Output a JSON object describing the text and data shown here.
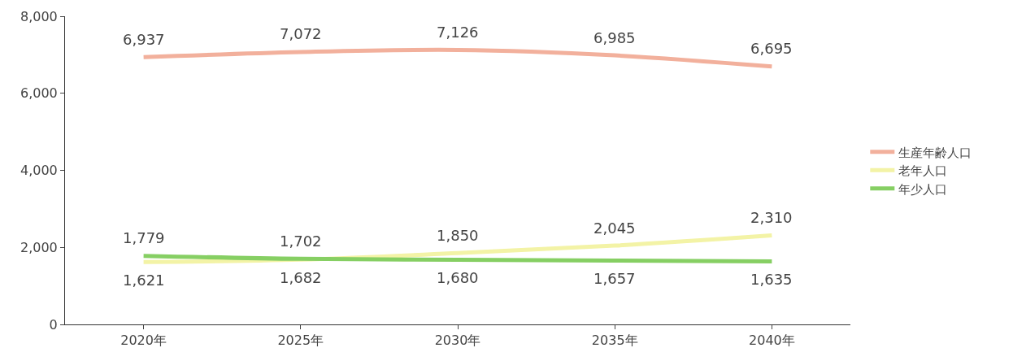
{
  "chart_data": {
    "type": "line",
    "categories": [
      "2020年",
      "2025年",
      "2030年",
      "2035年",
      "2040年"
    ],
    "series": [
      {
        "name": "生産年齢人口",
        "color": "#f2b09c",
        "values": [
          6937,
          7072,
          7126,
          6985,
          6695
        ],
        "value_labels": [
          "6,937",
          "7,072",
          "7,126",
          "6,985",
          "6,695"
        ]
      },
      {
        "name": "老年人口",
        "color": "#f3f3a6",
        "values": [
          1621,
          1682,
          1850,
          2045,
          2310
        ],
        "value_labels": [
          "1,621",
          "1,682",
          "1,850",
          "2,045",
          "2,310"
        ]
      },
      {
        "name": "年少人口",
        "color": "#86cf63",
        "values": [
          1779,
          1702,
          1680,
          1657,
          1635
        ],
        "value_labels": [
          "1,779",
          "1,702",
          "1,680",
          "1,657",
          "1,635"
        ]
      }
    ],
    "ylim": [
      0,
      8000
    ],
    "yticks": [
      0,
      {
        "value": 2000,
        "label": "2,000"
      },
      {
        "value": 4000,
        "label": "4,000"
      },
      {
        "value": 6000,
        "label": "6,000"
      },
      {
        "value": 8000,
        "label": "8,000"
      }
    ],
    "legend": "right",
    "marker": "none",
    "line_style": "solid"
  }
}
